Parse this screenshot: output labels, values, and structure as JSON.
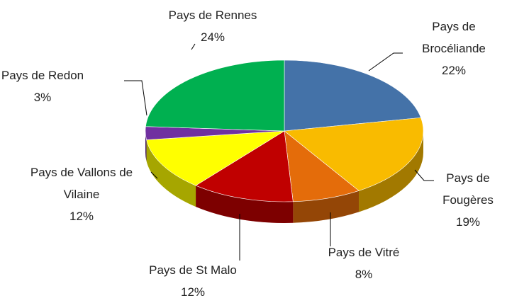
{
  "chart_data": {
    "type": "pie",
    "categories": [
      "Pays de Brocéliande",
      "Pays de Fougères",
      "Pays de Vitré",
      "Pays de St Malo",
      "Pays de Vallons de Vilaine",
      "Pays de Redon",
      "Pays de Rennes"
    ],
    "values": [
      22,
      19,
      8,
      12,
      12,
      3,
      24
    ],
    "value_labels": [
      "22%",
      "19%",
      "8%",
      "12%",
      "12%",
      "3%",
      "24%"
    ],
    "colors": [
      "#4472a8",
      "#f9bb00",
      "#e46c0a",
      "#c00000",
      "#ffff00",
      "#7030a0",
      "#00b050"
    ]
  }
}
